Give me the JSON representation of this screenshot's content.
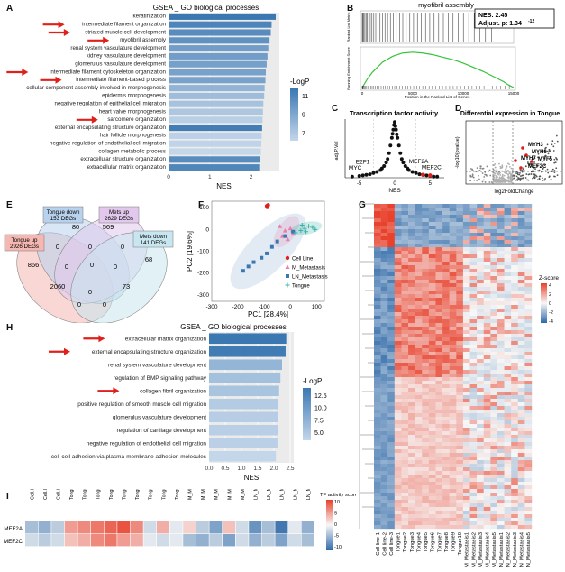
{
  "panel_labels": {
    "a": "A",
    "b": "B",
    "c": "C",
    "d": "D",
    "e": "E",
    "f": "F",
    "g": "G",
    "h": "H",
    "i": "I"
  },
  "colors": {
    "arrow": "#e0201b",
    "bar_dark": "#3b78b2",
    "bar_light": "#c3d6ea",
    "heat_red": "#e8412c",
    "heat_blue": "#2e69a8"
  },
  "chart_data": [
    {
      "id": "A",
      "type": "bar",
      "orientation": "horizontal",
      "title": "GSEA _ GO biological processes",
      "xlabel": "NES",
      "xlim": [
        0,
        2.6
      ],
      "xticks": [
        0,
        1,
        2
      ],
      "legend_title": "-LogP",
      "legend_ticks": [
        "11",
        "9",
        "7"
      ],
      "categories": [
        "keratinization",
        "intermediate filament organization",
        "striated muscle cell development",
        "myofibril assembly",
        "renal system vasculature development",
        "kidney vasculature development",
        "glomerulus vasculature development",
        "intermediate filament cytoskeleton organization",
        "intermediate filament-based process",
        "cellular component assembly involved in morphogenesis",
        "epidermis morphogenesis",
        "negative regulation of epithelial cell migration",
        "heart valve morphogenesis",
        "sarcomere organization",
        "external encapsulating structure organization",
        "hair follicle morphogenesis",
        "negative regulation of endothelial cell migration",
        "collagen metabolic process",
        "extracellular structure organization",
        "extracellular matrix organization"
      ],
      "values": [
        2.6,
        2.5,
        2.48,
        2.45,
        2.42,
        2.4,
        2.38,
        2.36,
        2.35,
        2.33,
        2.32,
        2.3,
        2.29,
        2.28,
        2.27,
        2.26,
        2.25,
        2.24,
        2.22,
        2.2
      ],
      "neglogp": [
        11,
        10.5,
        10.2,
        10,
        9.5,
        9.5,
        9.4,
        9.3,
        9.3,
        8.6,
        8.2,
        8,
        7.8,
        7.5,
        10.8,
        7.4,
        7.3,
        7.2,
        10.2,
        10.4
      ],
      "arrows": [
        1,
        2,
        3,
        7,
        8,
        13
      ]
    },
    {
      "id": "B",
      "type": "line",
      "title": "myofibril assembly",
      "stats": {
        "nes": "NES: 2.45",
        "padj": "Adjust. p: 1.34",
        "padj_exp": "-12"
      },
      "ylabel_top": "Ranked List Metric",
      "ylabel_bottom": "Running Enrichment Score",
      "xlabel": "Position in the Ranked List of Genes",
      "xticks": [
        "0",
        "5000",
        "10000",
        "15000"
      ],
      "x": [
        0,
        500,
        1000,
        1500,
        2000,
        3000,
        4000,
        5000,
        6000,
        7000,
        8000,
        9000,
        10000,
        11000,
        12000,
        13000,
        14000,
        14500,
        15000
      ],
      "y": [
        0,
        0.1,
        0.18,
        0.24,
        0.3,
        0.37,
        0.41,
        0.42,
        0.41,
        0.39,
        0.36,
        0.33,
        0.29,
        0.24,
        0.19,
        0.13,
        0.07,
        0.03,
        0.0
      ]
    },
    {
      "id": "C",
      "type": "scatter",
      "title": "Transcription factor activity",
      "xlabel": "NES",
      "ylabel": "adj.P.Val",
      "xticks": [
        "-5",
        "0",
        "5"
      ],
      "annotations": [
        "E2F1",
        "MYC",
        "MEF2A",
        "MEF2C"
      ],
      "points_x": [
        -6,
        -5,
        -4.5,
        -4,
        -3.5,
        -3,
        -2.5,
        -2,
        -1.8,
        -1.5,
        -1.2,
        -1,
        -0.8,
        -0.6,
        -0.4,
        -0.2,
        0,
        0.2,
        0.4,
        0.6,
        0.8,
        1,
        1.2,
        1.5,
        1.8,
        2,
        2.5,
        3,
        3.5,
        4,
        4.5,
        5,
        5.5,
        6,
        -0.1,
        0.1,
        -0.3,
        0.3
      ],
      "points_y": [
        0.02,
        0.03,
        0.04,
        0.05,
        0.06,
        0.08,
        0.1,
        0.13,
        0.16,
        0.2,
        0.26,
        0.32,
        0.42,
        0.55,
        0.68,
        0.82,
        0.95,
        0.82,
        0.68,
        0.55,
        0.42,
        0.32,
        0.26,
        0.2,
        0.16,
        0.13,
        0.1,
        0.08,
        0.06,
        0.05,
        0.04,
        0.03,
        0.02,
        0.02,
        0.9,
        0.88,
        0.75,
        0.74
      ],
      "highlight_x": [
        4,
        5
      ],
      "highlight_y": [
        0.05,
        0.04
      ]
    },
    {
      "id": "D",
      "type": "scatter",
      "title": "Differential expression in Tongue",
      "xlabel": "log2FoldChange",
      "ylabel": "-log10(pvalue)",
      "labels": [
        "MYH3",
        "MYH6",
        "MYF5",
        "MYH7",
        "MEF2C"
      ]
    },
    {
      "id": "E",
      "type": "venn",
      "sets": [
        {
          "name": "Tongue up",
          "count": "2926 DEGs"
        },
        {
          "name": "Tongue down",
          "count": "153 DEGs"
        },
        {
          "name": "Mets up",
          "count": "2629 DEGs"
        },
        {
          "name": "Mets down",
          "count": "141 DEGs"
        }
      ],
      "numbers": [
        "80",
        "569",
        "866",
        "0",
        "0",
        "0",
        "68",
        "0",
        "0",
        "0",
        "2060",
        "0",
        "73",
        "0",
        "0"
      ]
    },
    {
      "id": "F",
      "type": "scatter",
      "xlabel": "PC1 [28.4%]",
      "ylabel": "PC2 [19.6%]",
      "xticks": [
        "-300",
        "-200",
        "-100",
        "0",
        "100"
      ],
      "yticks": [
        "100",
        "0",
        "-100",
        "-200",
        "-300"
      ],
      "xlim": [
        -300,
        130
      ],
      "ylim": [
        -330,
        130
      ],
      "series": [
        {
          "name": "Cell Line",
          "color": "#e0201b",
          "marker": "circle",
          "x": [
            -90,
            -85,
            -88
          ],
          "y": [
            108,
            112,
            103
          ]
        },
        {
          "name": "M_Metastasis",
          "color": "#e47fb0",
          "marker": "triangle",
          "x": [
            -40,
            -20,
            0,
            -30,
            -10,
            10
          ],
          "y": [
            15,
            -5,
            5,
            -30,
            -45,
            -20
          ]
        },
        {
          "name": "LN_Metastasis",
          "color": "#3b78b2",
          "marker": "square",
          "x": [
            -180,
            -160,
            -140,
            -110,
            -90,
            -70,
            -50,
            -20,
            10
          ],
          "y": [
            -190,
            -170,
            -150,
            -130,
            -110,
            -80,
            -55,
            -30,
            -10
          ]
        },
        {
          "name": "Tongue",
          "color": "#3ab3a6",
          "marker": "plus",
          "x": [
            20,
            40,
            55,
            70,
            85,
            95,
            60,
            45
          ],
          "y": [
            -15,
            -5,
            5,
            15,
            10,
            0,
            -10,
            20
          ]
        }
      ]
    },
    {
      "id": "G",
      "type": "heatmap",
      "legend_title": "Z-score",
      "legend_ticks": [
        "4",
        "2",
        "0",
        "-2",
        "-4"
      ],
      "columns": [
        "Cell line-1",
        "Cell line-2",
        "Cell line-3",
        "Tongue1",
        "Tongue2",
        "Tongue3",
        "Tongue4",
        "Tongue5",
        "Tongue6",
        "Tongue7",
        "Tongue8",
        "Tongue9",
        "Tongue10",
        "M_Metastasis1",
        "M_Metastasis2",
        "M_Metastasis3",
        "M_Metastasis4",
        "M_Metastasis5",
        "LN_Metastasis1",
        "LN_Metastasis2",
        "LN_Metastasis3",
        "LN_Metastasis4",
        "LN_Metastasis5"
      ]
    },
    {
      "id": "H",
      "type": "bar",
      "orientation": "horizontal",
      "title": "GSEA _ GO biological processes",
      "xlabel": "NES",
      "xlim": [
        0,
        2.5
      ],
      "xticks": [
        "0.0",
        "0.5",
        "1.0",
        "1.5",
        "2.0",
        "2.5"
      ],
      "legend_title": "-LogP",
      "legend_ticks": [
        "12.5",
        "10.0",
        "7.5",
        "5.0"
      ],
      "categories": [
        "extracellular matrix organization",
        "external encapsulating structure organization",
        "renal system vasculature development",
        "regulation of BMP signaling pathway",
        "collagen fibril organization",
        "positive regulation of smooth muscle cell migration",
        "glomerulus vasculature development",
        "regulation of cartilage development",
        "negative regulation of endothelial cell migration",
        "cell-cell adhesion via plasma-membrane adhesion molecules"
      ],
      "values": [
        2.38,
        2.36,
        2.25,
        2.2,
        2.16,
        2.14,
        2.13,
        2.12,
        2.11,
        2.06
      ],
      "neglogp": [
        13.5,
        13.2,
        8,
        7,
        6.6,
        6,
        5.8,
        5.6,
        5.5,
        5
      ],
      "arrows": [
        0,
        1,
        4
      ]
    },
    {
      "id": "I",
      "type": "heatmap",
      "legend_title": "TF activity score",
      "legend_ticks": [
        "10",
        "5",
        "0",
        "-5",
        "-10"
      ],
      "rows": [
        "MEF2A",
        "MEF2C"
      ],
      "columns": [
        "Cell.line.1",
        "Cell.line.2",
        "Cell.line.3",
        "Tongue1",
        "Tongue2",
        "Tongue3",
        "Tongue4",
        "Tongue5",
        "Tongue6",
        "Tongue7",
        "Tongue8",
        "Tongue9",
        "M_Met1",
        "M_Met2",
        "M_Met3",
        "M_Met4",
        "M_Met5",
        "LN_Met1",
        "LN_Met2",
        "LN_Met3",
        "LN_Met4",
        "LN_Met5"
      ],
      "values": [
        [
          -4,
          -5,
          -3,
          5,
          6,
          7,
          8,
          9,
          6,
          -2,
          4,
          -1,
          2,
          -3,
          -6,
          3,
          -2,
          -7,
          -4,
          -9,
          -1,
          -5
        ],
        [
          -2,
          -3,
          -2,
          3,
          4,
          6,
          7,
          5,
          4,
          -1,
          -2,
          -1,
          -4,
          -5,
          -3,
          -6,
          -2,
          -5,
          -3,
          -6,
          -2,
          -4
        ]
      ]
    }
  ]
}
